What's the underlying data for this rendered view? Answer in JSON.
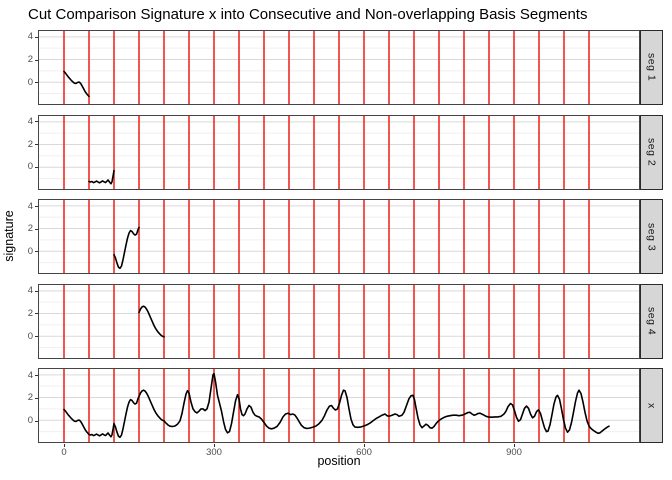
{
  "title": "Cut Comparison Signature x into Consecutive and Non-overlapping Basis Segments",
  "axes": {
    "x_label": "position",
    "y_label": "signature",
    "x_ticks": [
      {
        "value": 0,
        "label": "0"
      },
      {
        "value": 300,
        "label": "300"
      },
      {
        "value": 600,
        "label": "600"
      },
      {
        "value": 900,
        "label": "900"
      }
    ],
    "y_ticks": [
      {
        "value": 4,
        "label": "4"
      },
      {
        "value": 2,
        "label": "2"
      },
      {
        "value": 0,
        "label": "0"
      }
    ]
  },
  "chart_data": {
    "type": "line",
    "layout": "faceted-rows",
    "xlim": [
      -52,
      1152
    ],
    "ylim": [
      -2,
      4.6
    ],
    "grid": "horizontal-only",
    "grid_minor_y": [
      -1,
      1,
      3
    ],
    "colors": {
      "cut_line": "#ee2c24",
      "signal": "#000000",
      "strip_bg": "#d6d6d6",
      "grid_major": "#d9d9d9",
      "grid_minor": "#efefef",
      "panel_border": "#454545",
      "tick_text": "#4d4d4d"
    },
    "cut_positions": [
      0,
      50,
      100,
      150,
      200,
      250,
      300,
      350,
      400,
      450,
      500,
      550,
      600,
      650,
      700,
      750,
      800,
      850,
      900,
      950,
      1000,
      1050
    ],
    "facets": [
      {
        "label": "seg 1",
        "x_range": [
          0,
          50
        ]
      },
      {
        "label": "seg 2",
        "x_range": [
          50,
          100
        ]
      },
      {
        "label": "seg 3",
        "x_range": [
          100,
          150
        ]
      },
      {
        "label": "seg 4",
        "x_range": [
          150,
          200
        ]
      },
      {
        "label": "x",
        "x_range": [
          0,
          1090
        ]
      }
    ],
    "series": [
      {
        "name": "x",
        "points": [
          [
            0,
            0.95
          ],
          [
            3,
            0.8
          ],
          [
            6,
            0.62
          ],
          [
            9,
            0.45
          ],
          [
            12,
            0.3
          ],
          [
            15,
            0.15
          ],
          [
            18,
            0.02
          ],
          [
            21,
            -0.08
          ],
          [
            24,
            -0.1
          ],
          [
            27,
            -0.02
          ],
          [
            30,
            0.02
          ],
          [
            33,
            -0.08
          ],
          [
            36,
            -0.3
          ],
          [
            39,
            -0.55
          ],
          [
            42,
            -0.8
          ],
          [
            45,
            -1.0
          ],
          [
            48,
            -1.15
          ],
          [
            50,
            -1.25
          ],
          [
            53,
            -1.3
          ],
          [
            56,
            -1.25
          ],
          [
            59,
            -1.35
          ],
          [
            62,
            -1.3
          ],
          [
            65,
            -1.22
          ],
          [
            68,
            -1.3
          ],
          [
            71,
            -1.37
          ],
          [
            74,
            -1.3
          ],
          [
            77,
            -1.2
          ],
          [
            80,
            -1.28
          ],
          [
            83,
            -1.35
          ],
          [
            86,
            -1.22
          ],
          [
            88,
            -1.12
          ],
          [
            91,
            -1.3
          ],
          [
            94,
            -1.45
          ],
          [
            96,
            -1.28
          ],
          [
            98,
            -0.8
          ],
          [
            100,
            -0.3
          ],
          [
            103,
            -0.6
          ],
          [
            106,
            -1.05
          ],
          [
            109,
            -1.4
          ],
          [
            112,
            -1.5
          ],
          [
            115,
            -1.3
          ],
          [
            118,
            -0.75
          ],
          [
            121,
            -0.1
          ],
          [
            124,
            0.55
          ],
          [
            127,
            1.15
          ],
          [
            130,
            1.6
          ],
          [
            133,
            1.82
          ],
          [
            136,
            1.75
          ],
          [
            139,
            1.55
          ],
          [
            142,
            1.42
          ],
          [
            145,
            1.5
          ],
          [
            148,
            1.9
          ],
          [
            150,
            2.1
          ],
          [
            153,
            2.4
          ],
          [
            156,
            2.58
          ],
          [
            159,
            2.65
          ],
          [
            162,
            2.58
          ],
          [
            165,
            2.4
          ],
          [
            168,
            2.15
          ],
          [
            171,
            1.85
          ],
          [
            174,
            1.55
          ],
          [
            177,
            1.25
          ],
          [
            180,
            0.95
          ],
          [
            183,
            0.7
          ],
          [
            186,
            0.5
          ],
          [
            189,
            0.32
          ],
          [
            192,
            0.18
          ],
          [
            195,
            0.05
          ],
          [
            198,
            -0.02
          ],
          [
            200,
            -0.05
          ],
          [
            204,
            -0.25
          ],
          [
            208,
            -0.42
          ],
          [
            212,
            -0.52
          ],
          [
            217,
            -0.55
          ],
          [
            222,
            -0.5
          ],
          [
            227,
            -0.35
          ],
          [
            232,
            -0.05
          ],
          [
            236,
            0.6
          ],
          [
            240,
            1.5
          ],
          [
            244,
            2.3
          ],
          [
            247,
            2.6
          ],
          [
            250,
            2.4
          ],
          [
            254,
            1.6
          ],
          [
            258,
            1.0
          ],
          [
            262,
            0.75
          ],
          [
            266,
            0.65
          ],
          [
            270,
            0.8
          ],
          [
            274,
            1.0
          ],
          [
            278,
            1.0
          ],
          [
            282,
            0.85
          ],
          [
            286,
            1.0
          ],
          [
            290,
            1.6
          ],
          [
            294,
            2.8
          ],
          [
            298,
            4.0
          ],
          [
            300,
            4.1
          ],
          [
            303,
            3.4
          ],
          [
            307,
            2.2
          ],
          [
            311,
            1.5
          ],
          [
            315,
            0.8
          ],
          [
            319,
            -0.1
          ],
          [
            323,
            -0.8
          ],
          [
            327,
            -1.1
          ],
          [
            331,
            -1.0
          ],
          [
            335,
            -0.3
          ],
          [
            339,
            0.7
          ],
          [
            343,
            1.7
          ],
          [
            347,
            2.25
          ],
          [
            350,
            1.9
          ],
          [
            353,
            1.0
          ],
          [
            356,
            0.5
          ],
          [
            359,
            0.4
          ],
          [
            362,
            0.55
          ],
          [
            366,
            1.0
          ],
          [
            370,
            1.3
          ],
          [
            374,
            1.15
          ],
          [
            378,
            0.7
          ],
          [
            382,
            0.45
          ],
          [
            386,
            0.35
          ],
          [
            390,
            0.3
          ],
          [
            395,
            0.1
          ],
          [
            400,
            -0.2
          ],
          [
            405,
            -0.5
          ],
          [
            410,
            -0.7
          ],
          [
            415,
            -0.75
          ],
          [
            420,
            -0.7
          ],
          [
            426,
            -0.55
          ],
          [
            432,
            -0.2
          ],
          [
            438,
            0.3
          ],
          [
            443,
            0.55
          ],
          [
            448,
            0.62
          ],
          [
            453,
            0.5
          ],
          [
            458,
            0.55
          ],
          [
            462,
            0.45
          ],
          [
            466,
            0.2
          ],
          [
            470,
            -0.1
          ],
          [
            475,
            -0.45
          ],
          [
            480,
            -0.65
          ],
          [
            486,
            -0.72
          ],
          [
            492,
            -0.68
          ],
          [
            498,
            -0.6
          ],
          [
            504,
            -0.5
          ],
          [
            510,
            -0.3
          ],
          [
            516,
            0.0
          ],
          [
            521,
            0.4
          ],
          [
            526,
            0.9
          ],
          [
            531,
            1.25
          ],
          [
            535,
            1.3
          ],
          [
            539,
            1.05
          ],
          [
            543,
            0.9
          ],
          [
            547,
            1.0
          ],
          [
            551,
            1.5
          ],
          [
            555,
            2.2
          ],
          [
            559,
            2.65
          ],
          [
            562,
            2.6
          ],
          [
            566,
            2.0
          ],
          [
            570,
            1.0
          ],
          [
            574,
            0.1
          ],
          [
            578,
            -0.4
          ],
          [
            582,
            -0.6
          ],
          [
            588,
            -0.62
          ],
          [
            594,
            -0.58
          ],
          [
            600,
            -0.5
          ],
          [
            606,
            -0.4
          ],
          [
            612,
            -0.25
          ],
          [
            618,
            -0.05
          ],
          [
            624,
            0.15
          ],
          [
            630,
            0.3
          ],
          [
            636,
            0.45
          ],
          [
            642,
            0.55
          ],
          [
            646,
            0.4
          ],
          [
            650,
            0.35
          ],
          [
            656,
            0.45
          ],
          [
            662,
            0.55
          ],
          [
            666,
            0.5
          ],
          [
            670,
            0.35
          ],
          [
            676,
            0.45
          ],
          [
            680,
            0.7
          ],
          [
            685,
            1.3
          ],
          [
            690,
            1.9
          ],
          [
            694,
            2.15
          ],
          [
            698,
            2.2
          ],
          [
            701,
            1.8
          ],
          [
            704,
            1.1
          ],
          [
            708,
            0.2
          ],
          [
            712,
            -0.4
          ],
          [
            716,
            -0.65
          ],
          [
            720,
            -0.5
          ],
          [
            724,
            -0.35
          ],
          [
            728,
            -0.45
          ],
          [
            732,
            -0.65
          ],
          [
            736,
            -0.7
          ],
          [
            740,
            -0.55
          ],
          [
            744,
            -0.3
          ],
          [
            748,
            -0.1
          ],
          [
            754,
            0.1
          ],
          [
            760,
            0.25
          ],
          [
            766,
            0.35
          ],
          [
            772,
            0.4
          ],
          [
            778,
            0.45
          ],
          [
            784,
            0.45
          ],
          [
            790,
            0.4
          ],
          [
            796,
            0.45
          ],
          [
            802,
            0.55
          ],
          [
            808,
            0.68
          ],
          [
            812,
            0.7
          ],
          [
            816,
            0.55
          ],
          [
            820,
            0.45
          ],
          [
            824,
            0.5
          ],
          [
            828,
            0.6
          ],
          [
            832,
            0.62
          ],
          [
            838,
            0.5
          ],
          [
            844,
            0.35
          ],
          [
            850,
            0.28
          ],
          [
            856,
            0.27
          ],
          [
            862,
            0.3
          ],
          [
            868,
            0.3
          ],
          [
            874,
            0.35
          ],
          [
            880,
            0.55
          ],
          [
            884,
            0.8
          ],
          [
            888,
            1.2
          ],
          [
            893,
            1.48
          ],
          [
            897,
            1.35
          ],
          [
            901,
            0.85
          ],
          [
            905,
            0.25
          ],
          [
            909,
            -0.08
          ],
          [
            913,
            0.05
          ],
          [
            917,
            0.55
          ],
          [
            921,
            1.05
          ],
          [
            925,
            1.25
          ],
          [
            929,
            1.05
          ],
          [
            933,
            0.55
          ],
          [
            937,
            0.22
          ],
          [
            941,
            0.35
          ],
          [
            945,
            0.75
          ],
          [
            949,
            0.92
          ],
          [
            953,
            0.6
          ],
          [
            957,
            -0.05
          ],
          [
            961,
            -0.65
          ],
          [
            965,
            -1.0
          ],
          [
            968,
            -0.95
          ],
          [
            972,
            -0.4
          ],
          [
            976,
            0.5
          ],
          [
            980,
            1.45
          ],
          [
            984,
            2.05
          ],
          [
            987,
            2.2
          ],
          [
            991,
            1.85
          ],
          [
            995,
            1.0
          ],
          [
            999,
            0.05
          ],
          [
            1003,
            -0.7
          ],
          [
            1007,
            -1.05
          ],
          [
            1011,
            -0.85
          ],
          [
            1015,
            -0.2
          ],
          [
            1019,
            0.7
          ],
          [
            1023,
            1.65
          ],
          [
            1027,
            2.4
          ],
          [
            1030,
            2.65
          ],
          [
            1034,
            2.35
          ],
          [
            1038,
            1.6
          ],
          [
            1042,
            0.7
          ],
          [
            1046,
            -0.05
          ],
          [
            1050,
            -0.5
          ],
          [
            1054,
            -0.72
          ],
          [
            1059,
            -0.9
          ],
          [
            1064,
            -1.05
          ],
          [
            1068,
            -1.15
          ],
          [
            1072,
            -1.1
          ],
          [
            1076,
            -0.95
          ],
          [
            1081,
            -0.78
          ],
          [
            1086,
            -0.62
          ],
          [
            1090,
            -0.52
          ]
        ]
      }
    ]
  }
}
